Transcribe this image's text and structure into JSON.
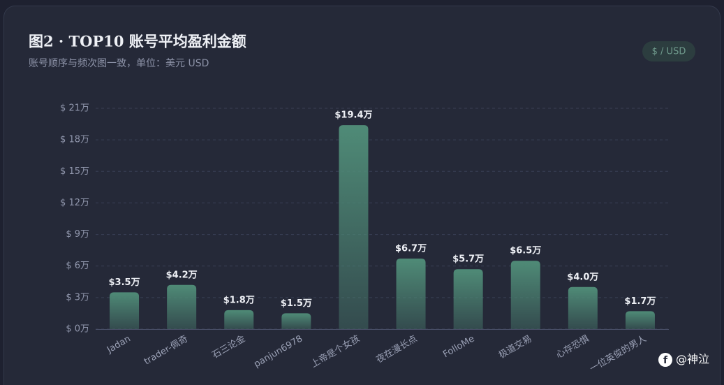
{
  "chart_data": {
    "type": "bar",
    "title": "图2 · TOP10 账号平均盈利金额",
    "subtitle": "账号顺序与频次图一致，单位：美元 USD",
    "badge": "$ / USD",
    "watermark": "@神泣",
    "categories": [
      "Jadan",
      "trader-佩奇",
      "石三论金",
      "panjun6978",
      "上帝是个女孩",
      "夜在漫长点",
      "FolloMe",
      "极道交易",
      "心存恐惧",
      "一位英俊的男人"
    ],
    "values": [
      3.5,
      4.2,
      1.8,
      1.5,
      19.4,
      6.7,
      5.7,
      6.5,
      4.0,
      1.7
    ],
    "value_labels": [
      "$3.5万",
      "$4.2万",
      "$1.8万",
      "$1.5万",
      "$19.4万",
      "$6.7万",
      "$5.7万",
      "$6.5万",
      "$4.0万",
      "$1.7万"
    ],
    "color": "#4f8b77",
    "ylim": [
      0,
      21
    ],
    "yticks": [
      {
        "value": 0,
        "label": "$ 0万"
      },
      {
        "value": 3,
        "label": "$ 3万"
      },
      {
        "value": 6,
        "label": "$ 6万"
      },
      {
        "value": 9,
        "label": "$ 9万"
      },
      {
        "value": 12,
        "label": "$ 12万"
      },
      {
        "value": 15,
        "label": "$ 15万"
      },
      {
        "value": 18,
        "label": "$ 18万"
      },
      {
        "value": 21,
        "label": "$ 21万"
      }
    ],
    "grid": true
  }
}
